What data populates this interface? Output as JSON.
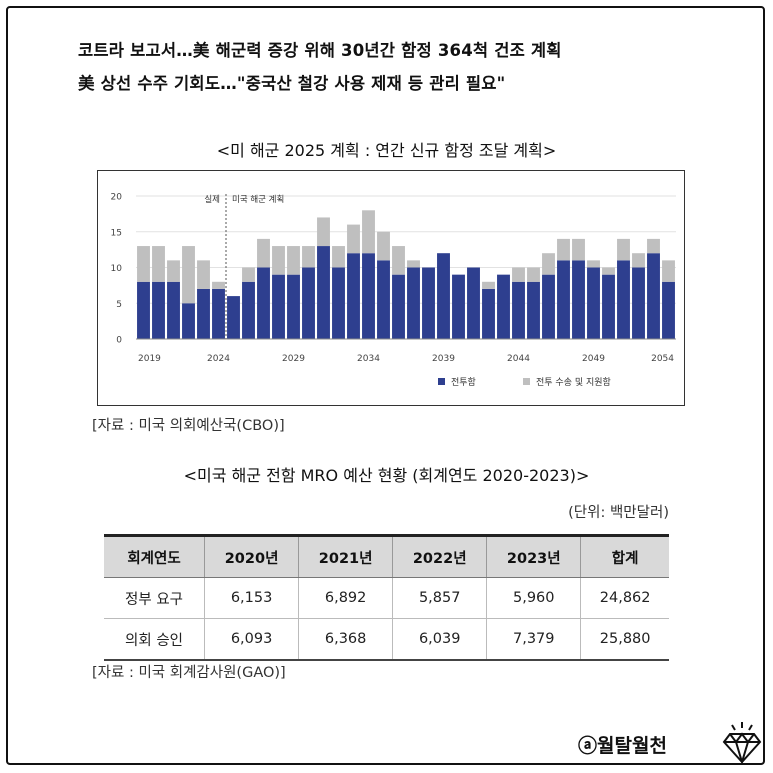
{
  "headline": {
    "line1": "코트라 보고서…美 해군력 증강 위해 30년간 함정 364척 건조 계획",
    "line2": "美 상선 수주 기회도…\"중국산 철강 사용 제재 등 관리 필요\""
  },
  "chart_title": "<미 해군 2025 계획 : 연간 신규 함정 조달 계획>",
  "chart_source": "[자료 : 미국 의회예산국(CBO)]",
  "chart_data": {
    "type": "bar",
    "stacked": true,
    "x": [
      2019,
      2020,
      2021,
      2022,
      2023,
      2024,
      2025,
      2026,
      2027,
      2028,
      2029,
      2030,
      2031,
      2032,
      2033,
      2034,
      2035,
      2036,
      2037,
      2038,
      2039,
      2040,
      2041,
      2042,
      2043,
      2044,
      2045,
      2046,
      2047,
      2048,
      2049,
      2050,
      2051,
      2052,
      2053,
      2054
    ],
    "x_tick_labels": [
      "2019",
      "2024",
      "2029",
      "2034",
      "2039",
      "2044",
      "2049",
      "2054"
    ],
    "x_ticks": [
      2019,
      2024,
      2029,
      2034,
      2039,
      2044,
      2049,
      2054
    ],
    "y_ticks": [
      0,
      5,
      10,
      15,
      20
    ],
    "ylim": [
      0,
      20
    ],
    "series": [
      {
        "name": "전투함",
        "color": "#2e3f8f",
        "values": [
          8,
          8,
          8,
          5,
          7,
          7,
          6,
          8,
          10,
          9,
          9,
          10,
          13,
          10,
          12,
          12,
          11,
          9,
          10,
          10,
          12,
          9,
          10,
          7,
          9,
          8,
          8,
          9,
          11,
          11,
          10,
          9,
          11,
          10,
          12,
          8
        ]
      },
      {
        "name": "전투 수송 및 지원함",
        "color": "#bfbfbf",
        "values": [
          5,
          5,
          3,
          8,
          4,
          1,
          0,
          2,
          4,
          4,
          4,
          3,
          4,
          3,
          4,
          6,
          4,
          4,
          1,
          0,
          0,
          0,
          0,
          1,
          0,
          2,
          2,
          3,
          3,
          3,
          1,
          1,
          3,
          2,
          2,
          3
        ]
      }
    ],
    "annotations": {
      "left": "실제",
      "right": "미국 해군 계획"
    },
    "legend_position": "bottom"
  },
  "table_title": "<미국 해군 전함 MRO 예산 현황 (회계연도 2020-2023)>",
  "table_unit": "(단위: 백만달러)",
  "table": {
    "headers": [
      "회계연도",
      "2020년",
      "2021년",
      "2022년",
      "2023년",
      "합계"
    ],
    "rows": [
      [
        "정부 요구",
        "6,153",
        "6,892",
        "5,857",
        "5,960",
        "24,862"
      ],
      [
        "의회 승인",
        "6,093",
        "6,368",
        "6,039",
        "7,379",
        "25,880"
      ]
    ]
  },
  "table_source": "[자료 : 미국 회계감사원(GAO)]",
  "brand": "ⓐ월탈월천",
  "brand_icon": "diamond-icon"
}
